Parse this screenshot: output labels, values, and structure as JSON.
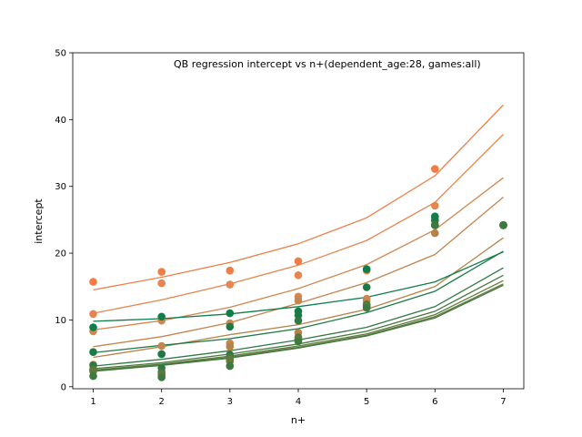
{
  "chart_data": {
    "type": "scatter",
    "title": "QB regression intercept vs n+(dependent_age:28, games:all)",
    "xlabel": "n+",
    "ylabel": "intercept",
    "xlim": [
      0.7,
      7.3
    ],
    "ylim": [
      -0.3,
      50
    ],
    "xticks": [
      1,
      2,
      3,
      4,
      5,
      6,
      7
    ],
    "yticks": [
      0,
      10,
      20,
      30,
      40,
      50
    ],
    "grid": false,
    "legend": "none",
    "x": [
      1,
      2,
      3,
      4,
      5,
      6,
      7
    ],
    "series": [
      {
        "color": "#f07d46",
        "points": [
          15.7,
          17.2,
          17.4,
          18.8,
          17.6,
          32.6,
          24.2
        ],
        "fit": [
          14.5,
          16.4,
          18.6,
          21.4,
          25.3,
          31.6,
          42.2
        ]
      },
      {
        "color": "#e6854f",
        "points": [
          10.9,
          15.5,
          15.3,
          16.7,
          17.4,
          27.1,
          24.2
        ],
        "fit": [
          11.0,
          13.0,
          15.4,
          18.2,
          21.9,
          27.6,
          37.8
        ]
      },
      {
        "color": "#d08850",
        "points": [
          8.3,
          9.9,
          9.5,
          13.5,
          13.2,
          25.3,
          24.2
        ],
        "fit": [
          8.5,
          9.9,
          11.9,
          14.7,
          18.3,
          23.5,
          31.3
        ]
      },
      {
        "color": "#c4854e",
        "points": [
          3.3,
          6.1,
          6.5,
          12.9,
          12.8,
          24.2,
          24.2
        ],
        "fit": [
          6.0,
          7.5,
          9.6,
          12.5,
          15.6,
          19.8,
          28.4
        ]
      },
      {
        "color": "#b58347",
        "points": [
          2.6,
          4.9,
          6.0,
          8.1,
          12.0,
          23.0,
          24.2
        ],
        "fit": [
          4.4,
          6.0,
          7.8,
          9.3,
          11.6,
          15.0,
          22.3
        ]
      },
      {
        "color": "#0e7e4a",
        "points": [
          8.9,
          10.5,
          11.0,
          11.3,
          17.6,
          25.5,
          24.2
        ],
        "fit": [
          9.8,
          10.2,
          10.9,
          12.0,
          13.4,
          15.7,
          20.2
        ]
      },
      {
        "color": "#1e7a45",
        "points": [
          5.2,
          4.9,
          9.0,
          10.7,
          14.9,
          24.9,
          24.2
        ],
        "fit": [
          5.1,
          6.2,
          7.2,
          8.7,
          11.1,
          14.3,
          20.3
        ]
      },
      {
        "color": "#2f7a44",
        "points": [
          3.2,
          2.8,
          4.8,
          9.9,
          12.3,
          24.2,
          24.2
        ],
        "fit": [
          3.1,
          4.1,
          5.4,
          7.0,
          8.9,
          12.0,
          17.8
        ]
      },
      {
        "color": "#49783f",
        "points": [
          2.6,
          2.2,
          4.4,
          7.4,
          12.2,
          24.2,
          24.2
        ],
        "fit": [
          2.7,
          3.6,
          4.9,
          6.4,
          8.3,
          11.3,
          16.7
        ]
      },
      {
        "color": "#5f7a3d",
        "points": [
          2.4,
          1.9,
          4.1,
          7.1,
          12.1,
          24.2,
          24.2
        ],
        "fit": [
          2.5,
          3.4,
          4.6,
          6.1,
          7.9,
          10.8,
          15.9
        ]
      },
      {
        "color": "#64783b",
        "points": [
          2.3,
          1.5,
          3.8,
          7.0,
          11.9,
          24.2,
          24.2
        ],
        "fit": [
          2.4,
          3.3,
          4.4,
          5.9,
          7.7,
          10.5,
          15.4
        ]
      },
      {
        "color": "#3d7a3f",
        "points": [
          1.6,
          1.4,
          3.1,
          6.8,
          11.8,
          24.2,
          24.2
        ],
        "fit": [
          2.3,
          3.2,
          4.3,
          5.8,
          7.6,
          10.3,
          15.2
        ]
      }
    ]
  }
}
